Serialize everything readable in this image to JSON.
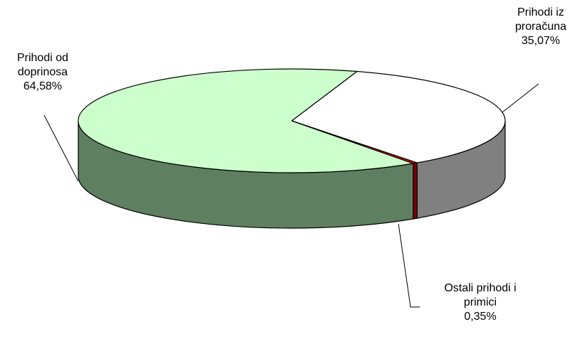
{
  "chart_data": {
    "type": "pie",
    "style": "3d",
    "slices": [
      {
        "label": [
          "Prihodi od",
          "doprinosa"
        ],
        "value_text": "64,58%",
        "value": 64.58,
        "top_color": "#ccffcc",
        "side_color": "#5f8060"
      },
      {
        "label": [
          "Prihodi iz",
          "proračuna"
        ],
        "value_text": "35,07%",
        "value": 35.07,
        "top_color": "#ffffff",
        "side_color": "#808080"
      },
      {
        "label": [
          "Ostali prihodi i",
          "primici"
        ],
        "value_text": "0,35%",
        "value": 0.35,
        "top_color": "#ff0000",
        "side_color": "#800000"
      }
    ]
  }
}
